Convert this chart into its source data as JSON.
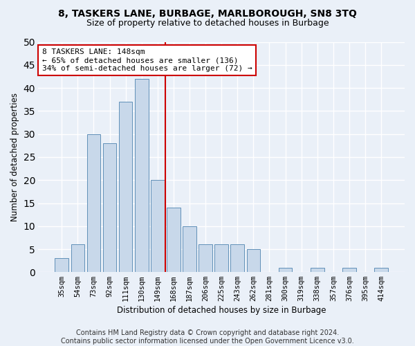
{
  "title1": "8, TASKERS LANE, BURBAGE, MARLBOROUGH, SN8 3TQ",
  "title2": "Size of property relative to detached houses in Burbage",
  "xlabel": "Distribution of detached houses by size in Burbage",
  "ylabel": "Number of detached properties",
  "categories": [
    "35sqm",
    "54sqm",
    "73sqm",
    "92sqm",
    "111sqm",
    "130sqm",
    "149sqm",
    "168sqm",
    "187sqm",
    "206sqm",
    "225sqm",
    "243sqm",
    "262sqm",
    "281sqm",
    "300sqm",
    "319sqm",
    "338sqm",
    "357sqm",
    "376sqm",
    "395sqm",
    "414sqm"
  ],
  "values": [
    3,
    6,
    30,
    28,
    37,
    42,
    20,
    14,
    10,
    6,
    6,
    6,
    5,
    0,
    1,
    0,
    1,
    0,
    1,
    0,
    1
  ],
  "bar_color": "#c8d8ea",
  "bar_edge_color": "#6090b8",
  "annotation_text": "8 TASKERS LANE: 148sqm\n← 65% of detached houses are smaller (136)\n34% of semi-detached houses are larger (72) →",
  "annotation_box_color": "#ffffff",
  "annotation_box_edge": "#cc0000",
  "vline_color": "#cc0000",
  "vline_x": 6.5,
  "ylim": [
    0,
    50
  ],
  "yticks": [
    0,
    5,
    10,
    15,
    20,
    25,
    30,
    35,
    40,
    45,
    50
  ],
  "bg_color": "#eaf0f8",
  "grid_color": "#ffffff",
  "footer": "Contains HM Land Registry data © Crown copyright and database right 2024.\nContains public sector information licensed under the Open Government Licence v3.0.",
  "title_fontsize": 10,
  "subtitle_fontsize": 9,
  "axis_label_fontsize": 8.5,
  "tick_fontsize": 7.5,
  "footer_fontsize": 7,
  "annot_fontsize": 8
}
